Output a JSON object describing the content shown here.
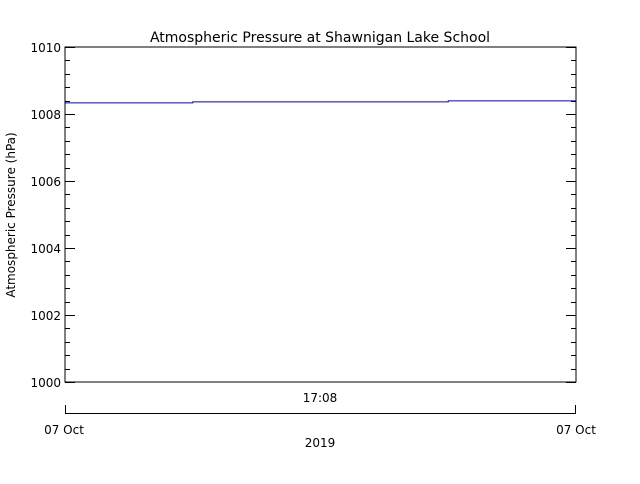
{
  "chart_data": {
    "type": "line",
    "title": "Atmospheric Pressure at Shawnigan Lake School",
    "xlabel": "2019",
    "ylabel": "Atmospheric Pressure (hPa)",
    "ylim": [
      1000,
      1010
    ],
    "yticks": [
      "1000",
      "1002",
      "1004",
      "1006",
      "1008",
      "1010"
    ],
    "y_minor_per_major": 4,
    "x_axis": {
      "center_label": "17:08",
      "start_label": "07 Oct",
      "end_label": "07 Oct",
      "year_label": "2019"
    },
    "grid": false,
    "legend": "none",
    "series": [
      {
        "name": "Atmospheric Pressure",
        "color": "#0000cc",
        "x_frac": [
          0.0,
          0.25,
          0.25,
          0.75,
          0.75,
          1.0
        ],
        "values": [
          1008.33,
          1008.33,
          1008.36,
          1008.36,
          1008.39,
          1008.39
        ]
      }
    ]
  }
}
